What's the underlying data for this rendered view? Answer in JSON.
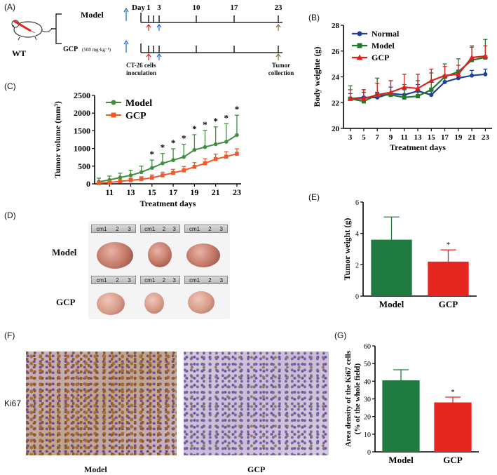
{
  "panels": {
    "A": "(A)",
    "B": "(B)",
    "C": "(C)",
    "D": "(D)",
    "E": "(E)",
    "F": "(F)",
    "G": "(G)"
  },
  "schematic": {
    "mouse_label": "WT",
    "model_label": "Model",
    "gcp_label": "GCP",
    "gcp_dose": "(500 mg·kg⁻¹)",
    "day_prefix": "Day",
    "day_ticks": [
      "1",
      "3",
      "10",
      "17",
      "23"
    ],
    "inoculation_label": "CT-26 cells inoculation",
    "collection_label": "Tumor collection",
    "colors": {
      "red_arrow": "#d9261c",
      "blue_arrow": "#1f6fd1",
      "brown_arrow": "#8b6a3b"
    }
  },
  "photos": {
    "model_label": "Model",
    "gcp_label": "GCP",
    "ruler_marks": [
      "cm1",
      "2",
      "3"
    ]
  },
  "ihc": {
    "row_label": "Ki67",
    "model_label": "Model",
    "gcp_label": "GCP"
  },
  "chart_data": [
    {
      "id": "B",
      "type": "line",
      "title": "",
      "xlabel": "Treatment days",
      "ylabel": "Body weighte (g)",
      "x": [
        3,
        5,
        7,
        9,
        11,
        13,
        15,
        17,
        19,
        21,
        23
      ],
      "xticks": [
        "3",
        "5",
        "7",
        "9",
        "11",
        "13",
        "15",
        "17",
        "19",
        "21",
        "23"
      ],
      "ylim": [
        20,
        28
      ],
      "yticks": [
        "20",
        "22",
        "24",
        "26",
        "28"
      ],
      "legend": "top-left",
      "series": [
        {
          "name": "Normal",
          "color": "#1f3f9e",
          "marker": "circle",
          "values": [
            22.3,
            22.4,
            22.4,
            22.7,
            22.6,
            22.9,
            22.6,
            23.6,
            23.9,
            24.1,
            24.2
          ],
          "err": [
            0.4,
            0.4,
            0.4,
            0.5,
            0.4,
            0.5,
            0.4,
            0.5,
            0.4,
            0.4,
            0.4
          ]
        },
        {
          "name": "Model",
          "color": "#1f7a2e",
          "marker": "square",
          "values": [
            22.3,
            22.1,
            22.6,
            22.6,
            22.4,
            22.5,
            23.0,
            24.0,
            24.4,
            25.3,
            25.5
          ],
          "err": [
            1.0,
            0.9,
            1.3,
            1.1,
            1.0,
            1.2,
            1.3,
            1.0,
            1.0,
            1.1,
            1.4
          ]
        },
        {
          "name": "GCP",
          "color": "#e02020",
          "marker": "triangle",
          "values": [
            22.3,
            22.3,
            22.6,
            22.8,
            23.2,
            23.1,
            23.7,
            24.1,
            24.2,
            25.5,
            25.6
          ],
          "err": [
            0.7,
            0.7,
            0.9,
            0.9,
            1.0,
            1.1,
            0.9,
            0.7,
            0.7,
            0.8,
            0.8
          ]
        }
      ]
    },
    {
      "id": "C",
      "type": "line",
      "xlabel": "Treatment days",
      "ylabel": "Tumor volume (mm³)",
      "x": [
        10,
        11,
        12,
        13,
        14,
        15,
        16,
        17,
        18,
        19,
        20,
        21,
        22,
        23
      ],
      "xticks": [
        "11",
        "13",
        "15",
        "17",
        "19",
        "21",
        "23"
      ],
      "ylim": [
        0,
        2500
      ],
      "yticks": [
        "0",
        "500",
        "1000",
        "1500",
        "2000",
        "2500"
      ],
      "legend": "top-left",
      "stars_at": [
        15,
        16,
        17,
        18,
        19,
        20,
        21,
        22,
        23
      ],
      "star_label": "*",
      "series": [
        {
          "name": "Model",
          "color": "#3f8f3f",
          "marker": "circle",
          "values": [
            60,
            110,
            180,
            240,
            330,
            450,
            580,
            670,
            760,
            960,
            1040,
            1120,
            1190,
            1380
          ],
          "err": [
            100,
            110,
            120,
            140,
            170,
            220,
            280,
            320,
            360,
            430,
            470,
            490,
            510,
            560
          ]
        },
        {
          "name": "GCP",
          "color": "#ef5a2a",
          "marker": "square",
          "values": [
            20,
            40,
            70,
            100,
            130,
            170,
            240,
            310,
            380,
            480,
            580,
            700,
            770,
            850
          ],
          "err": [
            40,
            45,
            50,
            60,
            70,
            80,
            90,
            100,
            110,
            120,
            130,
            140,
            140,
            140
          ]
        }
      ]
    },
    {
      "id": "E",
      "type": "bar",
      "ylabel": "Tumor weight (g)",
      "categories": [
        "Model",
        "GCP"
      ],
      "values": [
        3.6,
        2.2
      ],
      "err": [
        1.45,
        0.75
      ],
      "colors": [
        "#1e7a3e",
        "#e52520"
      ],
      "ylim": [
        0,
        6
      ],
      "yticks": [
        "0",
        "2",
        "4",
        "6"
      ],
      "annotation": "*"
    },
    {
      "id": "G",
      "type": "bar",
      "ylabel": "Area density of the Ki67 cells (% of the whole field)",
      "ylabel_lines": [
        "Area density of the Ki67 cells",
        "(% of the whole field)"
      ],
      "categories": [
        "Model",
        "GCP"
      ],
      "values": [
        40.5,
        28
      ],
      "err": [
        6,
        3
      ],
      "colors": [
        "#1e7a3e",
        "#e52520"
      ],
      "ylim": [
        0,
        60
      ],
      "yticks": [
        "0",
        "10",
        "20",
        "30",
        "40",
        "50",
        "60"
      ],
      "annotation": "*"
    }
  ]
}
